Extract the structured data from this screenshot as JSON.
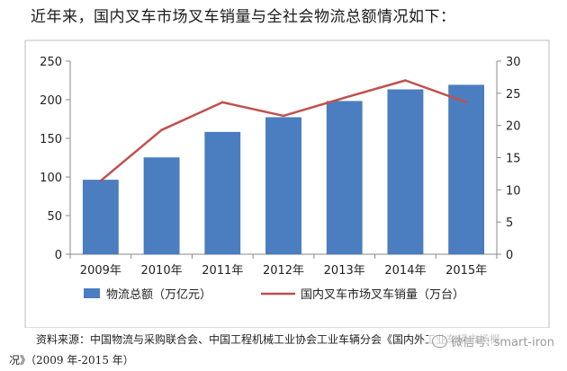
{
  "intro_text": "近年来，国内叉车市场叉车销量与全社会物流总额情况如下：",
  "chart_data": {
    "type": "bar",
    "categories": [
      "2009年",
      "2010年",
      "2011年",
      "2012年",
      "2013年",
      "2014年",
      "2015年"
    ],
    "series": [
      {
        "name": "物流总额（万亿元）",
        "type": "bar",
        "axis": "left",
        "values": [
          96,
          125,
          158,
          177,
          198,
          213,
          219
        ],
        "color": "#4a7ec0"
      },
      {
        "name": "国内叉车市场叉车销量（万台）",
        "type": "line",
        "axis": "right",
        "values": [
          11.4,
          19.3,
          23.6,
          21.5,
          24.3,
          27.0,
          23.6
        ],
        "color": "#c0504d"
      }
    ],
    "left_ticks": [
      "0",
      "50",
      "100",
      "150",
      "200",
      "250"
    ],
    "right_ticks": [
      "0",
      "5",
      "10",
      "15",
      "20",
      "25",
      "30"
    ],
    "ylim_left": [
      0,
      250
    ],
    "ylim_right": [
      0,
      30
    ],
    "grid": false,
    "legend_position": "bottom"
  },
  "source": {
    "line1": "资料来源：中国物流与采购联合会、中国工程机械工业协会工业车辆分会《国内外工业车辆市场概",
    "line2": "况》（2009 年-2015 年）"
  },
  "watermark": "微信号: smart-iron"
}
